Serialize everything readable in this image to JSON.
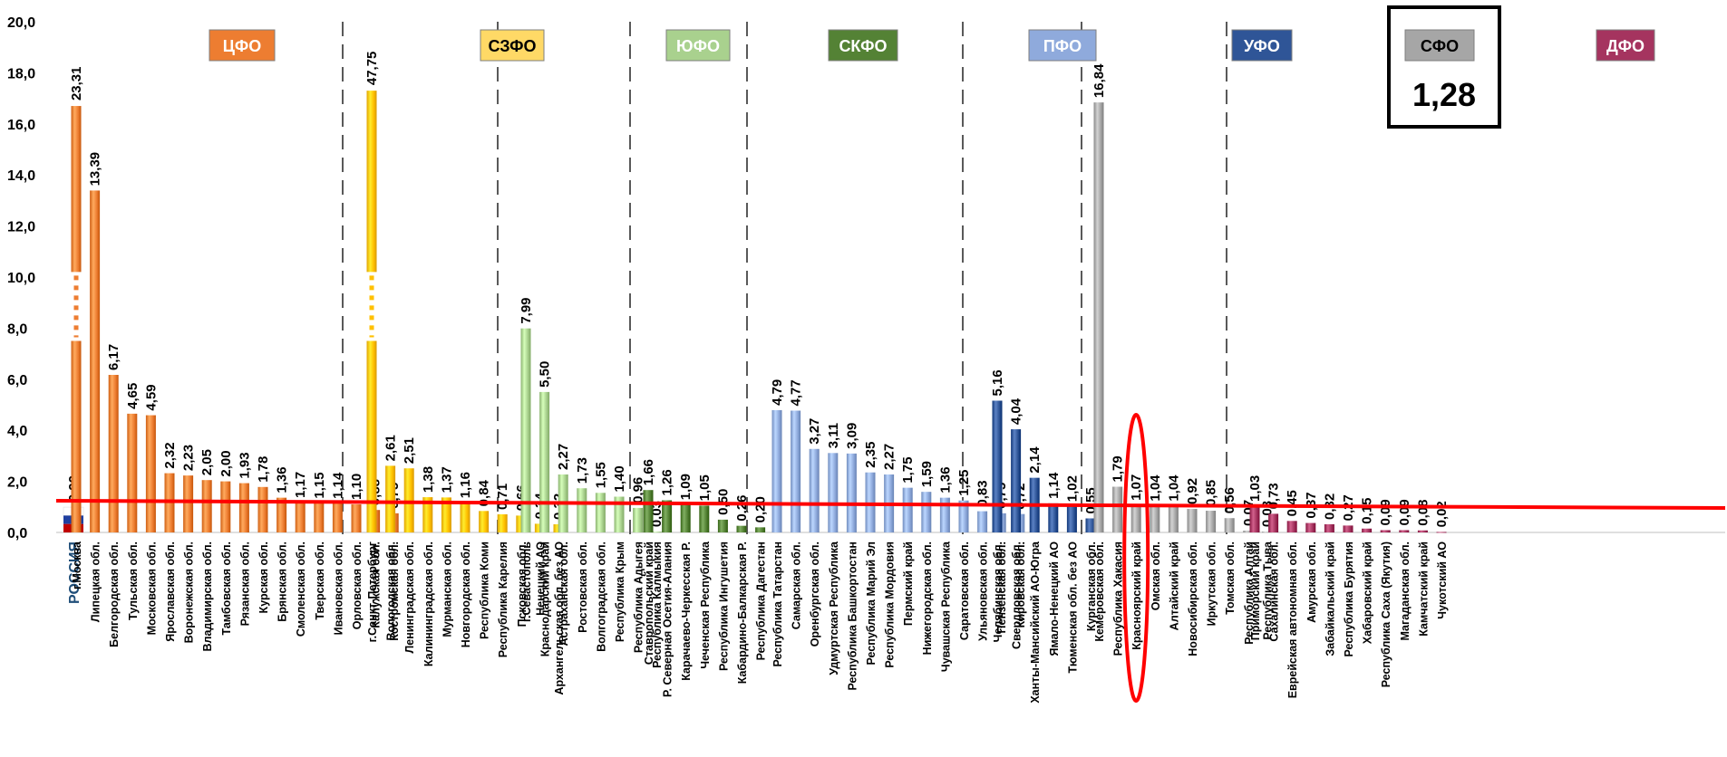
{
  "chart_data": {
    "type": "bar",
    "ylim": [
      0,
      20
    ],
    "yticks": [
      "0,0",
      "2,0",
      "4,0",
      "6,0",
      "8,0",
      "10,0",
      "12,0",
      "14,0",
      "16,0",
      "18,0",
      "20,0"
    ],
    "reference_line_value": 1.28,
    "callout": {
      "group": "СФО",
      "value_label": "1,28"
    },
    "russia": {
      "name": "РОССИЯ",
      "value": 0.99,
      "label": "0,99"
    },
    "groups": [
      {
        "name": "ЦФО",
        "color": "#ed7d31",
        "label_color": "#ed7d31",
        "items": [
          {
            "name": "г.Москва",
            "value": 23.31,
            "label": "23,31",
            "broken": true
          },
          {
            "name": "Липецкая обл.",
            "value": 13.39,
            "label": "13,39"
          },
          {
            "name": "Белгородская обл.",
            "value": 6.17,
            "label": "6,17"
          },
          {
            "name": "Тульская обл.",
            "value": 4.65,
            "label": "4,65"
          },
          {
            "name": "Московская обл.",
            "value": 4.59,
            "label": "4,59"
          },
          {
            "name": "Ярославская обл.",
            "value": 2.32,
            "label": "2,32"
          },
          {
            "name": "Воронежская обл.",
            "value": 2.23,
            "label": "2,23"
          },
          {
            "name": "Владимирская обл.",
            "value": 2.05,
            "label": "2,05"
          },
          {
            "name": "Тамбовская обл.",
            "value": 2.0,
            "label": "2,00"
          },
          {
            "name": "Рязанская обл.",
            "value": 1.93,
            "label": "1,93"
          },
          {
            "name": "Курская обл.",
            "value": 1.78,
            "label": "1,78"
          },
          {
            "name": "Брянская обл.",
            "value": 1.36,
            "label": "1,36"
          },
          {
            "name": "Смоленская обл.",
            "value": 1.17,
            "label": "1,17"
          },
          {
            "name": "Тверская обл.",
            "value": 1.15,
            "label": "1,15"
          },
          {
            "name": "Ивановская обл.",
            "value": 1.14,
            "label": "1,14"
          },
          {
            "name": "Орловская обл.",
            "value": 1.1,
            "label": "1,10"
          },
          {
            "name": "Калужская обл.",
            "value": 0.88,
            "label": "0,88"
          },
          {
            "name": "Костромская обл.",
            "value": 0.75,
            "label": "0,75"
          }
        ]
      },
      {
        "name": "СЗФО",
        "color": "#ffc000",
        "label_color": "#ffd966",
        "items": [
          {
            "name": "г.Санкт-Петербург",
            "value": 47.75,
            "label": "47,75",
            "broken": true
          },
          {
            "name": "Вологодская обл.",
            "value": 2.61,
            "label": "2,61"
          },
          {
            "name": "Ленинградская обл.",
            "value": 2.51,
            "label": "2,51"
          },
          {
            "name": "Калининградская обл.",
            "value": 1.38,
            "label": "1,38"
          },
          {
            "name": "Мурманская обл.",
            "value": 1.37,
            "label": "1,37"
          },
          {
            "name": "Новгородская обл.",
            "value": 1.16,
            "label": "1,16"
          },
          {
            "name": "Республика Коми",
            "value": 0.84,
            "label": "0,84"
          },
          {
            "name": "Республика Карелия",
            "value": 0.71,
            "label": "0,71"
          },
          {
            "name": "Псковская обл.",
            "value": 0.66,
            "label": "0,66"
          },
          {
            "name": "Ненецкий АО",
            "value": 0.34,
            "label": "0,34"
          },
          {
            "name": "Архангельская обл. без АО",
            "value": 0.32,
            "label": "0,32"
          }
        ]
      },
      {
        "name": "ЮФО",
        "color": "#a9d18e",
        "label_color": "#a9d18e",
        "items": [
          {
            "name": "г.Севастополь",
            "value": 7.99,
            "label": "7,99"
          },
          {
            "name": "Краснодарский край",
            "value": 5.5,
            "label": "5,50"
          },
          {
            "name": "Астраханская обл.",
            "value": 2.27,
            "label": "2,27"
          },
          {
            "name": "Ростовская обл.",
            "value": 1.73,
            "label": "1,73"
          },
          {
            "name": "Волгоградская обл.",
            "value": 1.55,
            "label": "1,55"
          },
          {
            "name": "Республика Крым",
            "value": 1.4,
            "label": "1,40"
          },
          {
            "name": "Республика Адыгея",
            "value": 0.96,
            "label": "0,96"
          },
          {
            "name": "Республика Калмыкия",
            "value": 0.03,
            "label": "0,03"
          }
        ]
      },
      {
        "name": "СКФО",
        "color": "#548235",
        "label_color": "#548235",
        "items": [
          {
            "name": "Ставропольский край",
            "value": 1.66,
            "label": "1,66"
          },
          {
            "name": "Р. Северная Осетия-Алания",
            "value": 1.26,
            "label": "1,26"
          },
          {
            "name": "Карачаево-Черкесская Р.",
            "value": 1.09,
            "label": "1,09"
          },
          {
            "name": "Чеченская Республика",
            "value": 1.05,
            "label": "1,05"
          },
          {
            "name": "Республика Ингушетия",
            "value": 0.5,
            "label": "0,50"
          },
          {
            "name": "Кабардино-Балкарская Р.",
            "value": 0.26,
            "label": "0,26"
          },
          {
            "name": "Республика Дагестан",
            "value": 0.2,
            "label": "0,20"
          }
        ]
      },
      {
        "name": "ПФО",
        "color": "#8faadc",
        "label_color": "#8faadc",
        "items": [
          {
            "name": "Республика Татарстан",
            "value": 4.79,
            "label": "4,79"
          },
          {
            "name": "Самарская обл.",
            "value": 4.77,
            "label": "4,77"
          },
          {
            "name": "Оренбургская обл.",
            "value": 3.27,
            "label": "3,27"
          },
          {
            "name": "Удмуртская Республика",
            "value": 3.11,
            "label": "3,11"
          },
          {
            "name": "Республика Башкортостан",
            "value": 3.09,
            "label": "3,09"
          },
          {
            "name": "Республика Марий Эл",
            "value": 2.35,
            "label": "2,35"
          },
          {
            "name": "Республика Мордовия",
            "value": 2.27,
            "label": "2,27"
          },
          {
            "name": "Пермский край",
            "value": 1.75,
            "label": "1,75"
          },
          {
            "name": "Нижегородская обл.",
            "value": 1.59,
            "label": "1,59"
          },
          {
            "name": "Чувашская Республика",
            "value": 1.36,
            "label": "1,36"
          },
          {
            "name": "Саратовская обл.",
            "value": 1.25,
            "label": "1,25"
          },
          {
            "name": "Ульяновская обл.",
            "value": 0.83,
            "label": "0,83"
          },
          {
            "name": "Пензенская обл.",
            "value": 0.75,
            "label": "0,75"
          },
          {
            "name": "Кировская обл.",
            "value": 0.72,
            "label": "0,72"
          }
        ]
      },
      {
        "name": "УФО",
        "color": "#2f5597",
        "label_color": "#2f5597",
        "items": [
          {
            "name": "Челябинская обл.",
            "value": 5.16,
            "label": "5,16"
          },
          {
            "name": "Свердловская обл.",
            "value": 4.04,
            "label": "4,04"
          },
          {
            "name": "Ханты-Мансийский АО-Югра",
            "value": 2.14,
            "label": "2,14"
          },
          {
            "name": "Ямало-Ненецкий АО",
            "value": 1.14,
            "label": "1,14"
          },
          {
            "name": "Тюменская обл. без АО",
            "value": 1.02,
            "label": "1,02"
          },
          {
            "name": "Курганская обл.",
            "value": 0.55,
            "label": "0,55"
          }
        ]
      },
      {
        "name": "СФО",
        "color": "#a6a6a6",
        "label_color": "#a6a6a6",
        "items": [
          {
            "name": "Кемеровская обл.",
            "value": 16.84,
            "label": "16,84"
          },
          {
            "name": "Республика Хакасия",
            "value": 1.79,
            "label": "1,79"
          },
          {
            "name": "Красноярский край",
            "value": 1.07,
            "label": "1,07",
            "highlight": true
          },
          {
            "name": "Омская обл.",
            "value": 1.04,
            "label": "1,04"
          },
          {
            "name": "Алтайский край",
            "value": 1.04,
            "label": "1,04"
          },
          {
            "name": "Новосибирская обл.",
            "value": 0.92,
            "label": "0,92"
          },
          {
            "name": "Иркутская обл.",
            "value": 0.85,
            "label": "0,85"
          },
          {
            "name": "Томская обл.",
            "value": 0.56,
            "label": "0,56"
          },
          {
            "name": "Республика Алтай",
            "value": 0.07,
            "label": "0,07"
          },
          {
            "name": "Республика Тыва",
            "value": 0.03,
            "label": "0,03"
          }
        ]
      },
      {
        "name": "ДФО",
        "color": "#a5345f",
        "label_color": "#a5345f",
        "items": [
          {
            "name": "Приморский край",
            "value": 1.03,
            "label": "1,03"
          },
          {
            "name": "Сахалинская обл.",
            "value": 0.73,
            "label": "0,73"
          },
          {
            "name": "Еврейская автономная обл.",
            "value": 0.45,
            "label": "0,45"
          },
          {
            "name": "Амурская обл.",
            "value": 0.37,
            "label": "0,37"
          },
          {
            "name": "Забайкальский край",
            "value": 0.32,
            "label": "0,32"
          },
          {
            "name": "Республика Бурятия",
            "value": 0.27,
            "label": "0,27"
          },
          {
            "name": "Хабаровский край",
            "value": 0.15,
            "label": "0,15"
          },
          {
            "name": "Республика Саха (Якутия)",
            "value": 0.09,
            "label": "0,09"
          },
          {
            "name": "Магаданская обл.",
            "value": 0.09,
            "label": "0,09"
          },
          {
            "name": "Камчатский край",
            "value": 0.08,
            "label": "0,08"
          },
          {
            "name": "Чукотский АО",
            "value": 0.02,
            "label": "0,02"
          }
        ]
      }
    ]
  }
}
